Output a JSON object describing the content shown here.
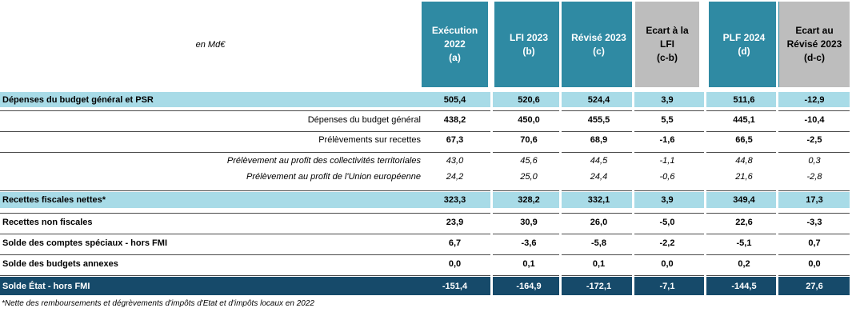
{
  "unit_label": "en  Md€",
  "columns": [
    {
      "id": "exec2022",
      "label": "Exécution\n2022\n(a)",
      "style": "teal"
    },
    {
      "id": "lfi2023",
      "label": "LFI 2023\n(b)",
      "style": "teal"
    },
    {
      "id": "revise2023",
      "label": "Révisé 2023\n(c)",
      "style": "teal"
    },
    {
      "id": "ecart_lfi",
      "label": "Ecart à la\nLFI\n(c-b)",
      "style": "grey"
    },
    {
      "id": "plf2024",
      "label": "PLF 2024\n(d)",
      "style": "teal"
    },
    {
      "id": "ecart_revise",
      "label": "Ecart au\nRévisé 2023\n(d-c)",
      "style": "grey"
    }
  ],
  "rows": [
    {
      "label": "Dépenses du budget général et PSR",
      "values": [
        "505,4",
        "520,6",
        "524,4",
        "3,9",
        "511,6",
        "-12,9"
      ],
      "kind": "main",
      "band": "light"
    },
    {
      "label": "Dépenses du budget général",
      "values": [
        "438,2",
        "450,0",
        "455,5",
        "5,5",
        "445,1",
        "-10,4"
      ],
      "kind": "sub",
      "band": "none"
    },
    {
      "label": "Prélèvements sur recettes",
      "values": [
        "67,3",
        "70,6",
        "68,9",
        "-1,6",
        "66,5",
        "-2,5"
      ],
      "kind": "sub-normal",
      "band": "none"
    },
    {
      "label": "Prélèvement au profit des collectivités territoriales",
      "values": [
        "43,0",
        "45,6",
        "44,5",
        "-1,1",
        "44,8",
        "0,3"
      ],
      "kind": "italic",
      "band": "none"
    },
    {
      "label": "Prélèvement au profit de l'Union européenne",
      "values": [
        "24,2",
        "25,0",
        "24,4",
        "-0,6",
        "21,6",
        "-2,8"
      ],
      "kind": "italic",
      "band": "none"
    },
    {
      "label": "Recettes fiscales nettes*",
      "values": [
        "323,3",
        "328,2",
        "332,1",
        "3,9",
        "349,4",
        "17,3"
      ],
      "kind": "main",
      "band": "light"
    },
    {
      "label": "Recettes non fiscales",
      "values": [
        "23,9",
        "30,9",
        "26,0",
        "-5,0",
        "22,6",
        "-3,3"
      ],
      "kind": "main",
      "band": "none"
    },
    {
      "label": "Solde des comptes spéciaux - hors FMI",
      "values": [
        "6,7",
        "-3,6",
        "-5,8",
        "-2,2",
        "-5,1",
        "0,7"
      ],
      "kind": "main",
      "band": "none"
    },
    {
      "label": "Solde des budgets annexes",
      "values": [
        "0,0",
        "0,1",
        "0,1",
        "0,0",
        "0,2",
        "0,0"
      ],
      "kind": "main",
      "band": "none"
    },
    {
      "label": "Solde État - hors FMI",
      "values": [
        "-151,4",
        "-164,9",
        "-172,1",
        "-7,1",
        "-144,5",
        "27,6"
      ],
      "kind": "main",
      "band": "dark"
    }
  ],
  "footnote": "*Nette des remboursements et dégrèvements d'impôts d'Etat et d'impôts locaux en 2022"
}
